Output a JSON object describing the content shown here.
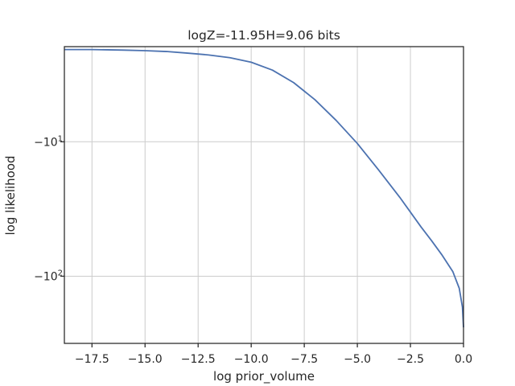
{
  "chart_data": {
    "type": "line",
    "title": "logZ=-11.95H=9.06 bits",
    "xlabel": "log prior_volume",
    "ylabel": "log likelihood",
    "xlim": [
      -18.8,
      0.0
    ],
    "ylim_log_magnitude": [
      1.96,
      316
    ],
    "y_scale": "symlog (negative values, magnitude on log axis)",
    "grid": true,
    "x_ticks": [
      {
        "value": -17.5,
        "label": "−17.5"
      },
      {
        "value": -15.0,
        "label": "−15.0"
      },
      {
        "value": -12.5,
        "label": "−12.5"
      },
      {
        "value": -10.0,
        "label": "−10.0"
      },
      {
        "value": -7.5,
        "label": "−7.5"
      },
      {
        "value": -5.0,
        "label": "−5.0"
      },
      {
        "value": -2.5,
        "label": "−2.5"
      },
      {
        "value": 0.0,
        "label": "0.0"
      }
    ],
    "y_ticks": [
      {
        "value": -10,
        "label_base": "−10",
        "label_exp": "1"
      },
      {
        "value": -100,
        "label_base": "−10",
        "label_exp": "2"
      }
    ],
    "series": [
      {
        "color": "#4c72b0",
        "x": [
          -18.8,
          -17.5,
          -16.0,
          -15.0,
          -14.0,
          -13.0,
          -12.0,
          -11.0,
          -10.0,
          -9.0,
          -8.0,
          -7.0,
          -6.0,
          -5.0,
          -4.0,
          -3.0,
          -2.0,
          -1.5,
          -1.0,
          -0.5,
          -0.2,
          -0.05,
          0.0
        ],
        "y": [
          -2.06,
          -2.06,
          -2.08,
          -2.1,
          -2.13,
          -2.19,
          -2.26,
          -2.37,
          -2.56,
          -2.93,
          -3.63,
          -4.86,
          -6.93,
          -10.3,
          -16.2,
          -25.9,
          -43.0,
          -54.5,
          -70.0,
          -92.6,
          -123,
          -170,
          -240
        ]
      }
    ]
  }
}
